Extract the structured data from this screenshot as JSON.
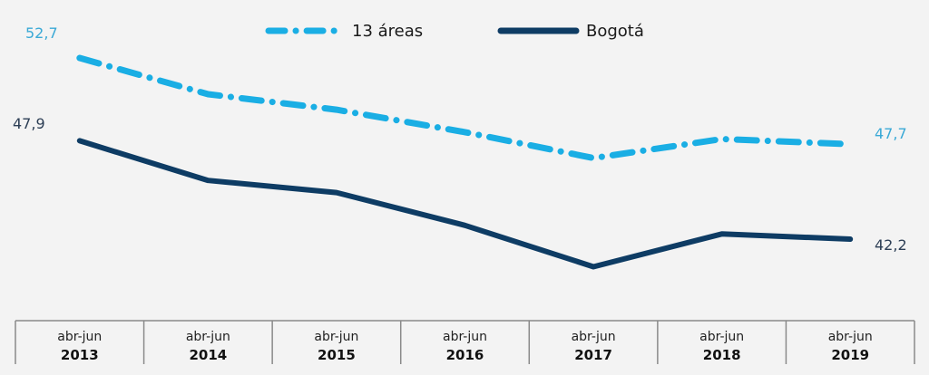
{
  "chart_data": {
    "type": "line",
    "title": "",
    "xlabel": "",
    "ylabel": "",
    "categories": [
      {
        "period": "abr-jun",
        "year": "2013"
      },
      {
        "period": "abr-jun",
        "year": "2014"
      },
      {
        "period": "abr-jun",
        "year": "2015"
      },
      {
        "period": "abr-jun",
        "year": "2016"
      },
      {
        "period": "abr-jun",
        "year": "2017"
      },
      {
        "period": "abr-jun",
        "year": "2018"
      },
      {
        "period": "abr-jun",
        "year": "2019"
      }
    ],
    "ylim": [
      38,
      54.8
    ],
    "grid": false,
    "legend_position": "top-center",
    "series": [
      {
        "name": "13 áreas",
        "style": "dash-dot",
        "color": "#1aaee4",
        "label_color": "#3aa9d6",
        "values": [
          52.7,
          50.6,
          49.7,
          48.4,
          46.9,
          48.0,
          47.7
        ],
        "data_labels": {
          "first": "52,7",
          "last": "47,7"
        }
      },
      {
        "name": "Bogotá",
        "style": "solid",
        "color": "#0e3c64",
        "label_color": "#2c3e55",
        "values": [
          47.9,
          45.6,
          44.9,
          43.0,
          40.6,
          42.5,
          42.2
        ],
        "data_labels": {
          "first": "47,9",
          "last": "42,2"
        }
      }
    ]
  }
}
